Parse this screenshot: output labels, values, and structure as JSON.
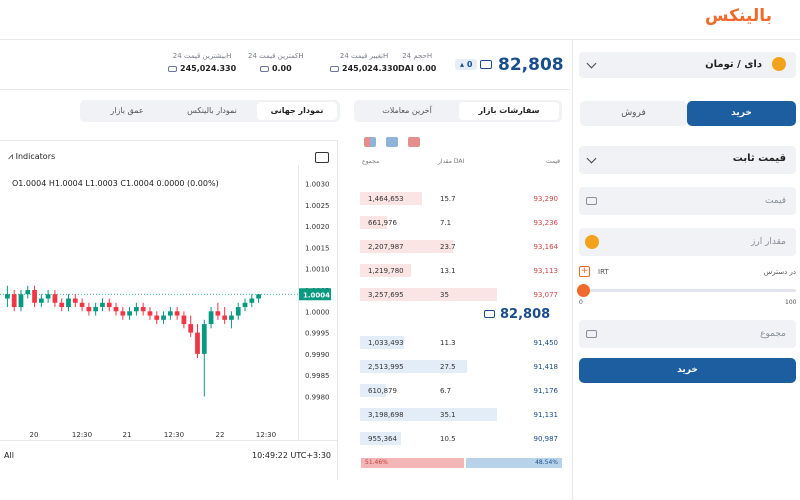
{
  "brand": {
    "logo_text": "بالینکس",
    "accent": "#f06a2b",
    "primary": "#1d5ea0"
  },
  "stats": {
    "volume": {
      "label": "حجم 24H",
      "value": "DAI 0.00"
    },
    "change": {
      "label": "تغییر قیمت 24H",
      "value": "245,024.330"
    },
    "low": {
      "label": "کمترین قیمت 24H",
      "value": "0.00"
    },
    "high": {
      "label": "بیشترین قیمت 24H",
      "value": "245,024.330"
    },
    "last_price": "82,808",
    "change_badge": "0"
  },
  "trade": {
    "pair_label": "دای / تومان",
    "tab_buy": "خرید",
    "tab_sell": "فروش",
    "order_type": "قیمت ثابت",
    "price_placeholder": "قیمت",
    "amount_placeholder": "مقدار ارز",
    "balance_label": "در دسترس",
    "balance_currency": "IRT",
    "slider_min": "0",
    "slider_max": "100",
    "slider_percent": 0,
    "total_placeholder": "مجموع",
    "submit": "خرید"
  },
  "orderbook": {
    "tab_orders": "سفارشات بازار",
    "tab_trades": "آخرین معاملات",
    "col_price": "قیمت",
    "col_amount": "مقدار DAI",
    "col_total": "مجموع",
    "asks": [
      {
        "total": "1,464,653",
        "amount": "15.7",
        "price": "93,290",
        "depth": 0.45
      },
      {
        "total": "661,976",
        "amount": "7.1",
        "price": "93,236",
        "depth": 0.2
      },
      {
        "total": "2,207,987",
        "amount": "23.7",
        "price": "93,164",
        "depth": 0.68
      },
      {
        "total": "1,219,780",
        "amount": "13.1",
        "price": "93,113",
        "depth": 0.37
      },
      {
        "total": "3,257,695",
        "amount": "35",
        "price": "93,077",
        "depth": 1.0
      }
    ],
    "mid_price": "82,808",
    "bids": [
      {
        "total": "1,033,493",
        "amount": "11.3",
        "price": "91,450",
        "depth": 0.32
      },
      {
        "total": "2,513,995",
        "amount": "27.5",
        "price": "91,418",
        "depth": 0.78
      },
      {
        "total": "610,879",
        "amount": "6.7",
        "price": "91,176",
        "depth": 0.19
      },
      {
        "total": "3,198,698",
        "amount": "35.1",
        "price": "91,131",
        "depth": 1.0
      },
      {
        "total": "955,364",
        "amount": "10.5",
        "price": "90,987",
        "depth": 0.3
      }
    ],
    "sell_ratio": "51.46%",
    "buy_ratio": "48.54%"
  },
  "chart_tabs": {
    "global": "نمودار جهانی",
    "balinex": "نمودار بالینکس",
    "depth": "عمق بازار"
  },
  "chart": {
    "indicators_label": "Indicators",
    "ohlc_text": "O1.0004 H1.0004 L1.0003 C1.0004 0.0000 (0.00%)",
    "timezone": "10:49:22 UTC+3:30",
    "range_label": "All"
  },
  "chart_data": {
    "type": "candlestick",
    "y_ticks": [
      "1.0030",
      "1.0025",
      "1.0020",
      "1.0015",
      "1.0010",
      "1.0005",
      "1.0000",
      "0.9995",
      "0.9990",
      "0.9985",
      "0.9980"
    ],
    "ylim": [
      0.9978,
      1.0032
    ],
    "x_ticks": [
      "20",
      "12:30",
      "21",
      "12:30",
      "22",
      "12:30"
    ],
    "last_price_label": "1.0004",
    "candles": [
      [
        1.0003,
        1.0006,
        1.0001,
        1.0004
      ],
      [
        1.0004,
        1.0005,
        1.0,
        1.0001
      ],
      [
        1.0001,
        1.0005,
        1.0,
        1.0004
      ],
      [
        1.0004,
        1.0006,
        1.0003,
        1.0005
      ],
      [
        1.0005,
        1.0006,
        1.0001,
        1.0002
      ],
      [
        1.0002,
        1.0004,
        1.0001,
        1.0003
      ],
      [
        1.0003,
        1.0005,
        1.0002,
        1.0004
      ],
      [
        1.0004,
        1.0005,
        1.0001,
        1.0002
      ],
      [
        1.0002,
        1.0003,
        1.0,
        1.0001
      ],
      [
        1.0001,
        1.0004,
        1.0,
        1.0003
      ],
      [
        1.0003,
        1.0004,
        1.0001,
        1.0002
      ],
      [
        1.0002,
        1.0003,
        1.0,
        1.0001
      ],
      [
        1.0001,
        1.0002,
        0.9999,
        1.0
      ],
      [
        1.0,
        1.0002,
        0.9999,
        1.0001
      ],
      [
        1.0001,
        1.0003,
        1.0,
        1.0002
      ],
      [
        1.0002,
        1.0003,
        1.0,
        1.0001
      ],
      [
        1.0001,
        1.0002,
        0.9999,
        1.0
      ],
      [
        1.0,
        1.0001,
        0.9998,
        0.9999
      ],
      [
        0.9999,
        1.0001,
        0.9998,
        1.0
      ],
      [
        1.0,
        1.0002,
        0.9999,
        1.0001
      ],
      [
        1.0001,
        1.0002,
        0.9999,
        1.0
      ],
      [
        1.0,
        1.0001,
        0.9998,
        0.9999
      ],
      [
        0.9999,
        1.0,
        0.9997,
        0.9998
      ],
      [
        0.9998,
        1.0,
        0.9997,
        0.9999
      ],
      [
        0.9999,
        1.0001,
        0.9998,
        1.0
      ],
      [
        1.0,
        1.0001,
        0.9998,
        0.9999
      ],
      [
        0.9999,
        1.0,
        0.9996,
        0.9997
      ],
      [
        0.9997,
        0.9999,
        0.9994,
        0.9995
      ],
      [
        0.9995,
        0.9997,
        0.9989,
        0.999
      ],
      [
        0.999,
        0.9998,
        0.998,
        0.9997
      ],
      [
        0.9997,
        1.0001,
        0.9996,
        1.0
      ],
      [
        1.0,
        1.0002,
        0.9998,
        0.9999
      ],
      [
        0.9999,
        1.0001,
        0.9997,
        0.9998
      ],
      [
        0.9998,
        1.0,
        0.9996,
        0.9999
      ],
      [
        0.9999,
        1.0002,
        0.9998,
        1.0001
      ],
      [
        1.0001,
        1.0003,
        1.0,
        1.0002
      ],
      [
        1.0002,
        1.0004,
        1.0001,
        1.0003
      ],
      [
        1.0003,
        1.0004,
        1.0002,
        1.0004
      ]
    ]
  }
}
